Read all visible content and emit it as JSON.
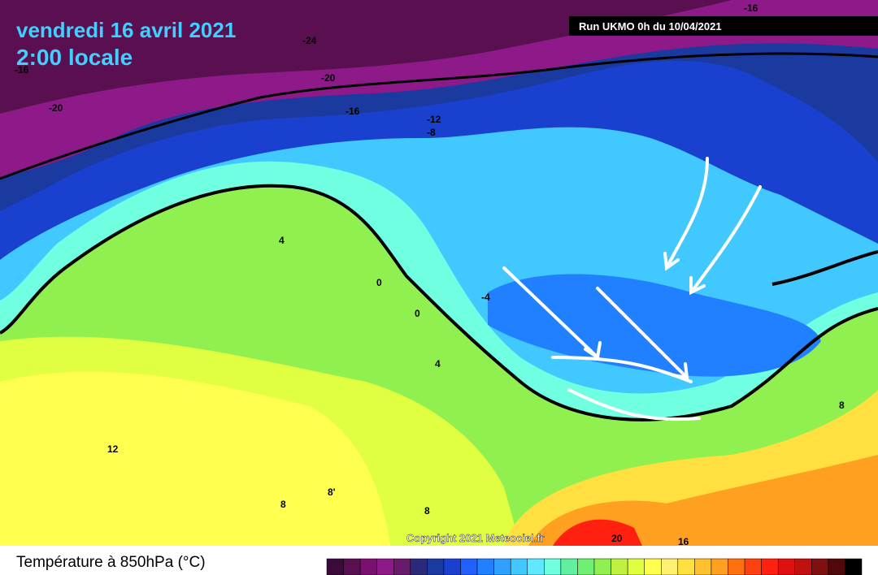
{
  "header": {
    "date": "vendredi 16 avril 2021",
    "time": "2:00 locale",
    "run": "Run UKMO 0h du 10/04/2021"
  },
  "copyright": "Copyright 2021 Meteociel.fr",
  "legend": {
    "title": "Température à 850hPa (°C)",
    "colors": [
      "#3a0a3a",
      "#5a1050",
      "#7a1070",
      "#8e1a8a",
      "#6a1a6a",
      "#2a2a7a",
      "#1a3aa0",
      "#1a40d0",
      "#2060ff",
      "#2080ff",
      "#30a0ff",
      "#40c8ff",
      "#60e8ff",
      "#70ffe0",
      "#60f0a0",
      "#70f070",
      "#90f050",
      "#c0f040",
      "#e0ff40",
      "#ffff50",
      "#fff070",
      "#ffe040",
      "#ffc030",
      "#ffa020",
      "#ff7010",
      "#ff4010",
      "#ff2010",
      "#e01010",
      "#c01010",
      "#801010",
      "#500808",
      "#000000"
    ]
  },
  "contour_labels": [
    "-24",
    "-20",
    "-16",
    "-20",
    "-16",
    "-12",
    "-8",
    "-16",
    "4",
    "0",
    "0",
    "-4",
    "4",
    "12",
    "8'",
    "8",
    "8",
    "20",
    "16",
    "8"
  ]
}
